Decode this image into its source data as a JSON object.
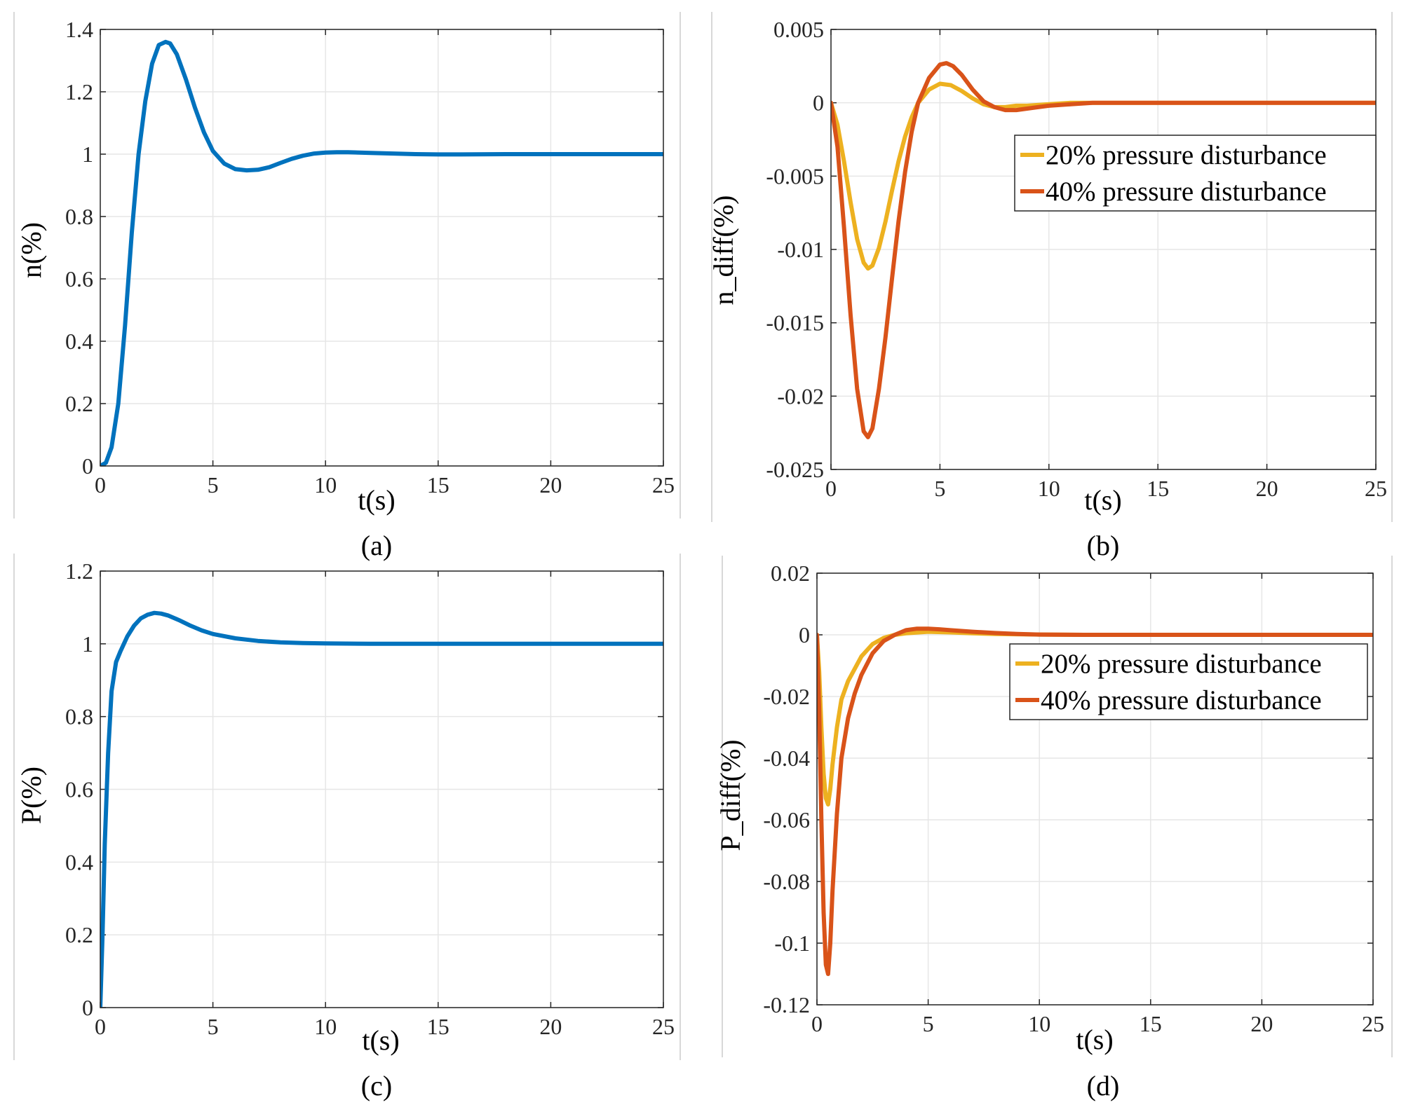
{
  "colors": {
    "blue": "#0072BD",
    "yellow": "#EDB120",
    "orange": "#D95319"
  },
  "chart_data": [
    {
      "type": "line",
      "caption": "(a)",
      "xlabel": "t(s)",
      "ylabel": "n(%)",
      "xlim": [
        0,
        25
      ],
      "ylim": [
        0,
        1.4
      ],
      "xticks": [
        0,
        5,
        10,
        15,
        20,
        25
      ],
      "xtick_labels": [
        "0",
        "5",
        "10",
        "15",
        "20",
        "25"
      ],
      "yticks": [
        0,
        0.2,
        0.4,
        0.6,
        0.8,
        1,
        1.2,
        1.4
      ],
      "ytick_labels": [
        "0",
        "0.2",
        "0.4",
        "0.6",
        "0.8",
        "1",
        "1.2",
        "1.4"
      ],
      "grid": true,
      "legend": null,
      "series": [
        {
          "name": "n",
          "color": "#0072BD",
          "x": [
            0,
            0.25,
            0.5,
            0.8,
            1.1,
            1.4,
            1.7,
            2.0,
            2.3,
            2.6,
            2.9,
            3.1,
            3.4,
            3.8,
            4.2,
            4.6,
            5.0,
            5.5,
            6.0,
            6.5,
            7.0,
            7.5,
            8.0,
            8.5,
            9.0,
            9.5,
            10.0,
            10.5,
            11,
            12,
            13,
            14,
            15,
            16,
            18,
            20,
            22,
            25
          ],
          "y": [
            0,
            0.01,
            0.06,
            0.2,
            0.45,
            0.75,
            1.0,
            1.17,
            1.29,
            1.35,
            1.36,
            1.355,
            1.32,
            1.24,
            1.15,
            1.07,
            1.01,
            0.97,
            0.952,
            0.948,
            0.95,
            0.958,
            0.972,
            0.985,
            0.995,
            1.002,
            1.005,
            1.006,
            1.006,
            1.004,
            1.002,
            1.0,
            0.999,
            0.999,
            1.0,
            1.0,
            1.0,
            1.0
          ]
        }
      ]
    },
    {
      "type": "line",
      "caption": "(b)",
      "xlabel": "t(s)",
      "ylabel": "n_diff(%)",
      "xlim": [
        0,
        25
      ],
      "ylim": [
        -0.025,
        0.005
      ],
      "xticks": [
        0,
        5,
        10,
        15,
        20,
        25
      ],
      "xtick_labels": [
        "0",
        "5",
        "10",
        "15",
        "20",
        "25"
      ],
      "yticks": [
        -0.025,
        -0.02,
        -0.015,
        -0.01,
        -0.005,
        0,
        0.005
      ],
      "ytick_labels": [
        "-0.025",
        "-0.02",
        "-0.015",
        "-0.01",
        "-0.005",
        "0",
        "0.005"
      ],
      "grid": true,
      "legend": {
        "position": "top-right",
        "entries": [
          "20% pressure disturbance",
          "40% pressure disturbance"
        ]
      },
      "series": [
        {
          "name": "20% pressure disturbance",
          "color": "#EDB120",
          "x": [
            0,
            0.3,
            0.6,
            0.9,
            1.2,
            1.5,
            1.7,
            1.9,
            2.2,
            2.5,
            2.8,
            3.1,
            3.4,
            3.7,
            4.0,
            4.5,
            5.0,
            5.5,
            6.0,
            6.5,
            7.0,
            7.5,
            8.0,
            8.5,
            9.0,
            10,
            11,
            12,
            13,
            15,
            18,
            21,
            25
          ],
          "y": [
            0,
            -0.0015,
            -0.004,
            -0.0068,
            -0.0093,
            -0.0109,
            -0.0113,
            -0.0111,
            -0.0099,
            -0.0081,
            -0.006,
            -0.004,
            -0.0023,
            -0.001,
            0,
            0.0009,
            0.0013,
            0.0012,
            0.0008,
            0.0003,
            -0.0001,
            -0.0003,
            -0.0003,
            -0.0002,
            -0.0002,
            -0.0001,
            0,
            0,
            0,
            0,
            0,
            0,
            0
          ]
        },
        {
          "name": "40% pressure disturbance",
          "color": "#D95319",
          "x": [
            0,
            0.3,
            0.6,
            0.9,
            1.2,
            1.5,
            1.7,
            1.9,
            2.2,
            2.5,
            2.8,
            3.1,
            3.4,
            3.7,
            4.0,
            4.5,
            5.0,
            5.3,
            5.6,
            6.0,
            6.5,
            7.0,
            7.5,
            8.0,
            8.5,
            9.0,
            9.5,
            10,
            11,
            12,
            13,
            15,
            18,
            21,
            25
          ],
          "y": [
            0,
            -0.003,
            -0.0085,
            -0.0145,
            -0.0195,
            -0.0224,
            -0.0228,
            -0.0222,
            -0.0195,
            -0.016,
            -0.012,
            -0.0081,
            -0.0047,
            -0.002,
            0,
            0.0017,
            0.0026,
            0.0027,
            0.0025,
            0.0019,
            0.0009,
            0.0001,
            -0.0003,
            -0.0005,
            -0.0005,
            -0.0004,
            -0.0003,
            -0.0002,
            -0.0001,
            0,
            0,
            0,
            0,
            0,
            0
          ]
        }
      ]
    },
    {
      "type": "line",
      "caption": "(c)",
      "xlabel": "t(s)",
      "ylabel": "P(%)",
      "xlim": [
        0,
        25
      ],
      "ylim": [
        0,
        1.2
      ],
      "xticks": [
        0,
        5,
        10,
        15,
        20,
        25
      ],
      "xtick_labels": [
        "0",
        "5",
        "10",
        "15",
        "20",
        "25"
      ],
      "yticks": [
        0,
        0.2,
        0.4,
        0.6,
        0.8,
        1,
        1.2
      ],
      "ytick_labels": [
        "0",
        "0.2",
        "0.4",
        "0.6",
        "0.8",
        "1",
        "1.2"
      ],
      "grid": true,
      "legend": null,
      "series": [
        {
          "name": "P",
          "color": "#0072BD",
          "x": [
            0,
            0.1,
            0.2,
            0.35,
            0.5,
            0.7,
            0.9,
            1.2,
            1.5,
            1.8,
            2.1,
            2.4,
            2.7,
            3.0,
            3.5,
            4.0,
            4.5,
            5.0,
            6.0,
            7.0,
            8.0,
            9.0,
            10,
            12,
            15,
            20,
            25
          ],
          "y": [
            0,
            0.2,
            0.45,
            0.7,
            0.87,
            0.95,
            0.98,
            1.02,
            1.05,
            1.07,
            1.08,
            1.085,
            1.083,
            1.078,
            1.065,
            1.05,
            1.037,
            1.027,
            1.015,
            1.008,
            1.004,
            1.002,
            1.001,
            1.0,
            1.0,
            1.0,
            1.0
          ]
        }
      ]
    },
    {
      "type": "line",
      "caption": "(d)",
      "xlabel": "t(s)",
      "ylabel": "P_diff(%)",
      "xlim": [
        0,
        25
      ],
      "ylim": [
        -0.12,
        0.02
      ],
      "xticks": [
        0,
        5,
        10,
        15,
        20,
        25
      ],
      "xtick_labels": [
        "0",
        "5",
        "10",
        "15",
        "20",
        "25"
      ],
      "yticks": [
        -0.12,
        -0.1,
        -0.08,
        -0.06,
        -0.04,
        -0.02,
        0,
        0.02
      ],
      "ytick_labels": [
        "-0.12",
        "-0.1",
        "-0.08",
        "-0.06",
        "-0.04",
        "-0.02",
        "0",
        "0.02"
      ],
      "grid": true,
      "legend": {
        "position": "top-right",
        "entries": [
          "20% pressure disturbance",
          "40% pressure disturbance"
        ]
      },
      "series": [
        {
          "name": "20% pressure disturbance",
          "color": "#EDB120",
          "x": [
            0,
            0.1,
            0.2,
            0.3,
            0.4,
            0.5,
            0.6,
            0.7,
            0.9,
            1.1,
            1.4,
            1.7,
            2.0,
            2.5,
            3.0,
            3.5,
            4.0,
            5.0,
            6.0,
            7.0,
            8.0,
            10,
            12,
            15,
            20,
            25
          ],
          "y": [
            0,
            -0.012,
            -0.03,
            -0.045,
            -0.053,
            -0.055,
            -0.05,
            -0.042,
            -0.03,
            -0.021,
            -0.015,
            -0.011,
            -0.007,
            -0.003,
            -0.001,
            0,
            0.0005,
            0.001,
            0.0008,
            0.0005,
            0.0003,
            0.0001,
            0,
            0,
            0,
            0
          ]
        },
        {
          "name": "40% pressure disturbance",
          "color": "#D95319",
          "x": [
            0,
            0.1,
            0.2,
            0.3,
            0.4,
            0.5,
            0.6,
            0.7,
            0.9,
            1.1,
            1.4,
            1.7,
            2.0,
            2.5,
            3.0,
            3.5,
            4.0,
            4.5,
            5.0,
            5.5,
            6.0,
            7.0,
            8.0,
            9.0,
            10,
            12,
            15,
            20,
            25
          ],
          "y": [
            0,
            -0.025,
            -0.06,
            -0.09,
            -0.107,
            -0.11,
            -0.1,
            -0.083,
            -0.058,
            -0.04,
            -0.027,
            -0.019,
            -0.013,
            -0.006,
            -0.002,
            0,
            0.0015,
            0.002,
            0.002,
            0.0018,
            0.0015,
            0.001,
            0.0006,
            0.0003,
            0.0001,
            0,
            0,
            0,
            0
          ]
        }
      ]
    }
  ]
}
